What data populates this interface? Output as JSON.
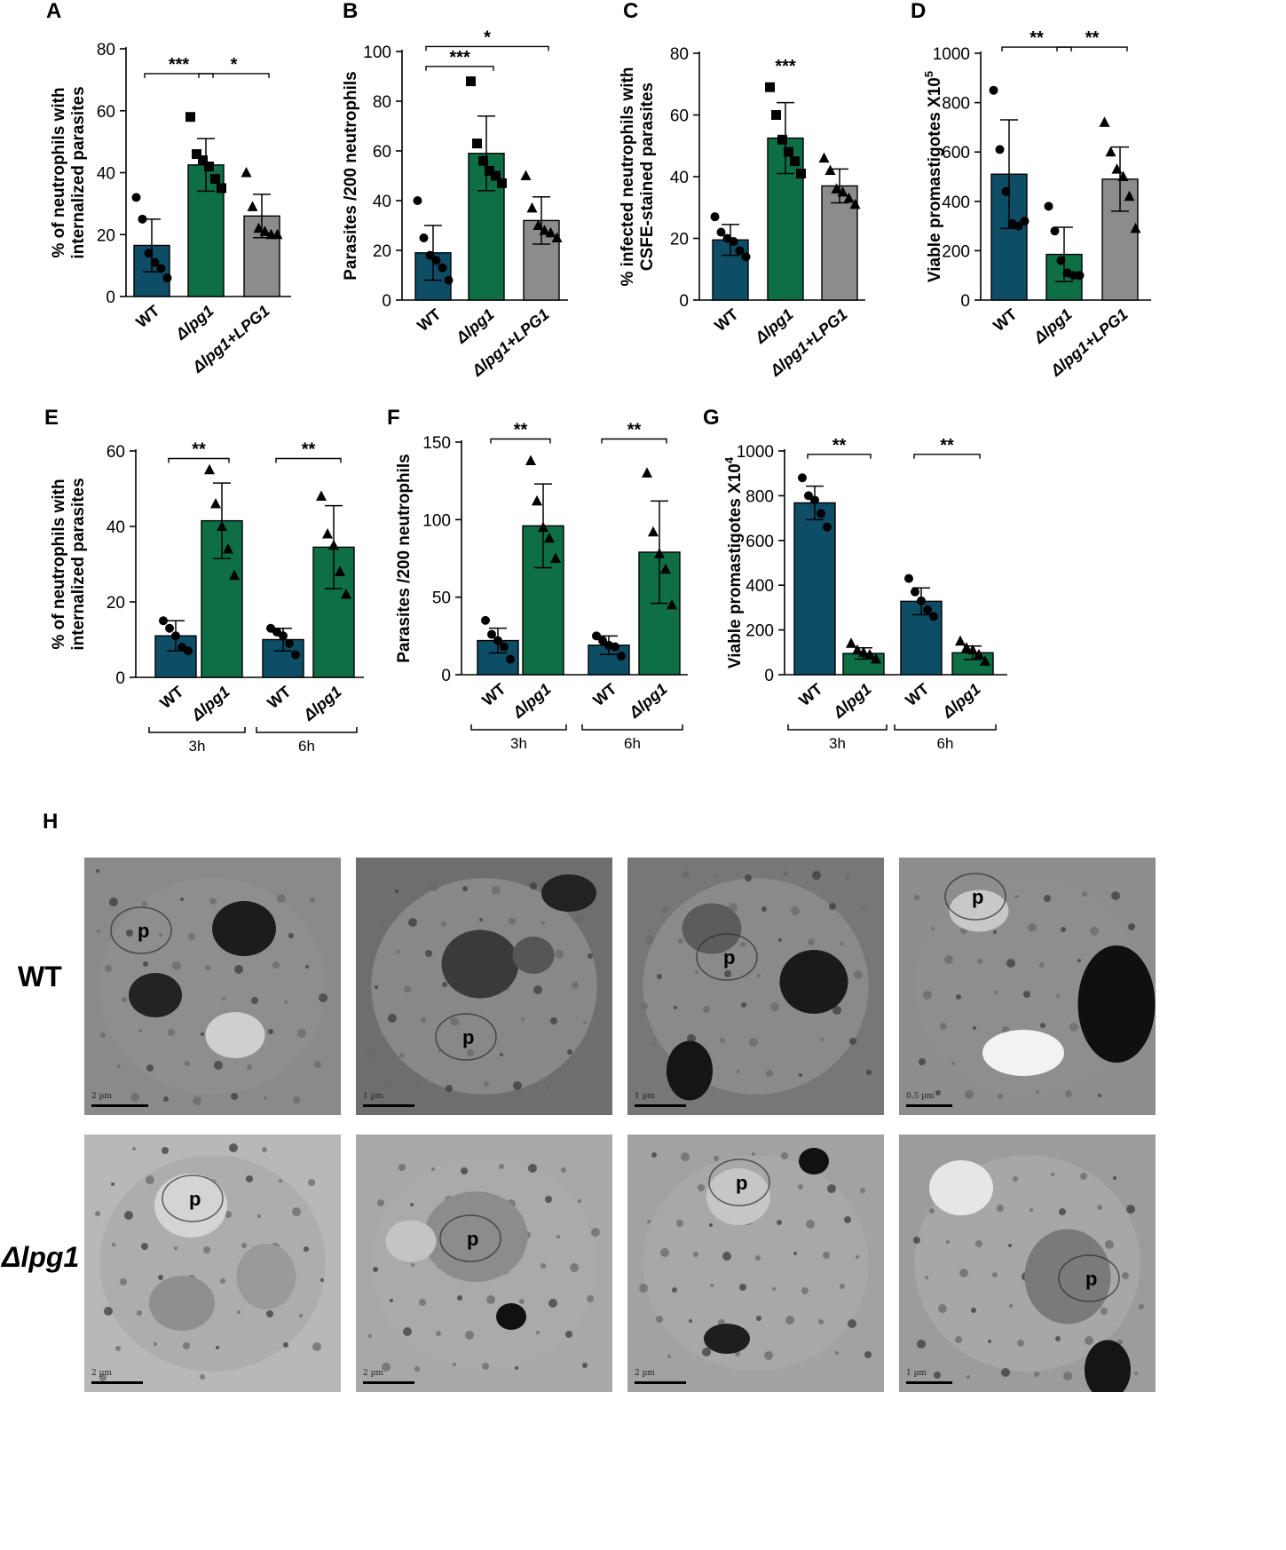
{
  "colors": {
    "wt": "#0d4d66",
    "lpg1": "#0e6e44",
    "addback": "#8c8c8c"
  },
  "chart_data": [
    {
      "panel": "A",
      "type": "bar",
      "ylabel": [
        "% of neutrophils with",
        "internalized parasites"
      ],
      "ylim": [
        0,
        80
      ],
      "yticks": [
        0,
        20,
        40,
        60,
        80
      ],
      "categories": [
        "WT",
        "Δlpg1",
        "Δlpg1+LPG1"
      ],
      "values": [
        16.5,
        42.5,
        26
      ],
      "errors": [
        8.5,
        8.5,
        7
      ],
      "markers": [
        "circle",
        "square",
        "triangle"
      ],
      "points": [
        [
          32,
          25,
          14,
          11,
          9,
          6
        ],
        [
          58,
          46,
          44,
          42,
          38,
          35
        ],
        [
          40,
          29,
          22,
          21,
          20,
          20
        ]
      ],
      "sig": [
        {
          "from": 0,
          "to": 1,
          "label": "***",
          "y": 72
        },
        {
          "from": 1,
          "to": 2,
          "label": "*",
          "y": 72
        }
      ]
    },
    {
      "panel": "B",
      "type": "bar",
      "ylabel": [
        "Parasites /200 neutrophils"
      ],
      "ylim": [
        0,
        100
      ],
      "yticks": [
        0,
        20,
        40,
        60,
        80,
        100
      ],
      "categories": [
        "WT",
        "Δlpg1",
        "Δlpg1+LPG1"
      ],
      "values": [
        19,
        59,
        32
      ],
      "errors": [
        11,
        15,
        9.5
      ],
      "markers": [
        "circle",
        "square",
        "triangle"
      ],
      "points": [
        [
          40,
          25,
          18,
          16,
          13,
          8
        ],
        [
          88,
          63,
          56,
          52,
          50,
          47
        ],
        [
          50,
          37,
          30,
          28,
          27,
          25
        ]
      ],
      "sig": [
        {
          "from": 0,
          "to": 1,
          "label": "***",
          "y": 94
        },
        {
          "from": 0,
          "to": 2,
          "label": "*",
          "y": 102
        }
      ]
    },
    {
      "panel": "C",
      "type": "bar",
      "ylabel": [
        "% infected neutrophils with",
        "CSFE-stained parasites"
      ],
      "ylim": [
        0,
        80
      ],
      "yticks": [
        0,
        20,
        40,
        60,
        80
      ],
      "categories": [
        "WT",
        "Δlpg1",
        "Δlpg1+LPG1"
      ],
      "values": [
        19.5,
        52.5,
        37
      ],
      "errors": [
        5,
        11.5,
        5.5
      ],
      "markers": [
        "circle",
        "square",
        "triangle"
      ],
      "points": [
        [
          27,
          22,
          20,
          19,
          16,
          14
        ],
        [
          69,
          60,
          52,
          48,
          45,
          41
        ],
        [
          46,
          42,
          36,
          35,
          33,
          31
        ]
      ],
      "sig": [
        {
          "from": 1,
          "to": 1,
          "label": "***",
          "y": 74
        }
      ]
    },
    {
      "panel": "D",
      "type": "bar",
      "ylabel": [
        "Viable promastigotes X10",
        "5"
      ],
      "ylim": [
        0,
        1000
      ],
      "yticks": [
        0,
        200,
        400,
        600,
        800,
        1000
      ],
      "categories": [
        "WT",
        "Δlpg1",
        "Δlpg1+LPG1"
      ],
      "values": [
        510,
        185,
        490
      ],
      "errors": [
        220,
        110,
        130
      ],
      "markers": [
        "circle",
        "circle",
        "triangle"
      ],
      "points": [
        [
          850,
          610,
          440,
          310,
          300,
          320
        ],
        [
          380,
          280,
          160,
          110,
          100,
          100
        ],
        [
          720,
          600,
          530,
          500,
          420,
          290
        ]
      ],
      "sig": [
        {
          "from": 0,
          "to": 1,
          "label": "**",
          "y": 1025
        },
        {
          "from": 1,
          "to": 2,
          "label": "**",
          "y": 1025
        }
      ]
    },
    {
      "panel": "E",
      "type": "bar",
      "ylabel": [
        "% of neutrophils with",
        "internalized parasites"
      ],
      "ylim": [
        0,
        60
      ],
      "yticks": [
        0,
        20,
        40,
        60
      ],
      "categories": [
        "WT",
        "Δlpg1",
        "WT",
        "Δlpg1"
      ],
      "groups": [
        "3h",
        "6h"
      ],
      "values": [
        11,
        41.5,
        10,
        34.5
      ],
      "errors": [
        4,
        10,
        3,
        11
      ],
      "markers": [
        "circle",
        "triangle",
        "circle",
        "triangle"
      ],
      "points": [
        [
          15,
          13,
          11,
          8,
          7
        ],
        [
          55,
          46,
          40,
          34,
          27
        ],
        [
          13,
          12,
          11,
          9,
          6
        ],
        [
          48,
          38,
          35,
          28,
          22
        ]
      ],
      "sig": [
        {
          "from": 0,
          "to": 1,
          "label": "**",
          "y": 58
        },
        {
          "from": 2,
          "to": 3,
          "label": "**",
          "y": 58
        }
      ]
    },
    {
      "panel": "F",
      "type": "bar",
      "ylabel": [
        "Parasites /200 neutrophils"
      ],
      "ylim": [
        0,
        150
      ],
      "yticks": [
        0,
        50,
        100,
        150
      ],
      "categories": [
        "WT",
        "Δlpg1",
        "WT",
        "Δlpg1"
      ],
      "groups": [
        "3h",
        "6h"
      ],
      "values": [
        22,
        96,
        19,
        79
      ],
      "errors": [
        8,
        27,
        6,
        33
      ],
      "markers": [
        "circle",
        "triangle",
        "circle",
        "triangle"
      ],
      "points": [
        [
          35,
          26,
          22,
          18,
          10
        ],
        [
          138,
          112,
          95,
          88,
          75
        ],
        [
          25,
          22,
          19,
          18,
          12
        ],
        [
          130,
          92,
          78,
          68,
          45
        ]
      ],
      "sig": [
        {
          "from": 0,
          "to": 1,
          "label": "**",
          "y": 152
        },
        {
          "from": 2,
          "to": 3,
          "label": "**",
          "y": 152
        }
      ]
    },
    {
      "panel": "G",
      "type": "bar",
      "ylabel": [
        "Viable promastigotes X10",
        "4"
      ],
      "ylim": [
        0,
        1000
      ],
      "yticks": [
        0,
        200,
        400,
        600,
        800,
        1000
      ],
      "categories": [
        "WT",
        "Δlpg1",
        "WT",
        "Δlpg1"
      ],
      "groups": [
        "3h",
        "6h"
      ],
      "values": [
        768,
        95,
        328,
        98
      ],
      "errors": [
        75,
        25,
        60,
        30
      ],
      "markers": [
        "circle",
        "triangle",
        "circle",
        "triangle"
      ],
      "points": [
        [
          880,
          800,
          780,
          720,
          660
        ],
        [
          140,
          110,
          100,
          90,
          70
        ],
        [
          430,
          370,
          330,
          290,
          260
        ],
        [
          150,
          120,
          110,
          90,
          60
        ]
      ],
      "sig": [
        {
          "from": 0,
          "to": 1,
          "label": "**",
          "y": 985
        },
        {
          "from": 2,
          "to": 3,
          "label": "**",
          "y": 985
        }
      ]
    }
  ],
  "panel_h": {
    "letter": "H",
    "rows": [
      "WT",
      "Δlpg1"
    ],
    "marker_label": "p",
    "scale_bars": [
      [
        "2 µm",
        "1 µm",
        "1 µm",
        "0.5 µm"
      ],
      [
        "2 µm",
        "2 µm",
        "2 µm",
        "1 µm"
      ]
    ]
  }
}
